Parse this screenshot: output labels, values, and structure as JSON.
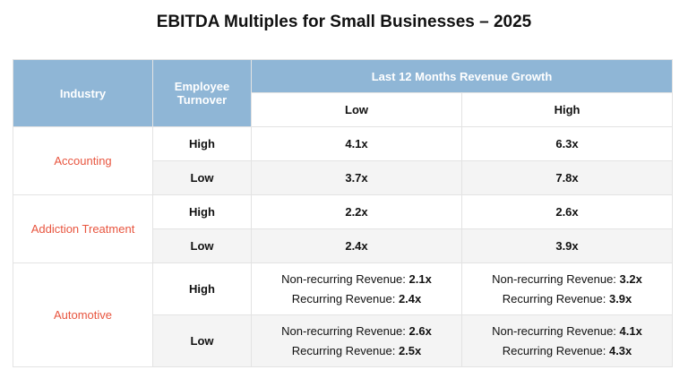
{
  "title": "EBITDA Multiples for Small Businesses – 2025",
  "headers": {
    "industry": "Industry",
    "turnover": "Employee Turnover",
    "growth": "Last 12 Months Revenue Growth",
    "low": "Low",
    "high": "High"
  },
  "rows": {
    "accounting": {
      "label": "Accounting",
      "high_turnover": {
        "label": "High",
        "low": "4.1x",
        "high": "6.3x"
      },
      "low_turnover": {
        "label": "Low",
        "low": "3.7x",
        "high": "7.8x"
      }
    },
    "addiction": {
      "label": "Addiction Treatment",
      "high_turnover": {
        "label": "High",
        "low": "2.2x",
        "high": "2.6x"
      },
      "low_turnover": {
        "label": "Low",
        "low": "2.4x",
        "high": "3.9x"
      }
    },
    "automotive": {
      "label": "Automotive",
      "nonrec_label": "Non-recurring Revenue: ",
      "rec_label": "Recurring Revenue: ",
      "high_turnover": {
        "label": "High",
        "low_nonrec": "2.1x",
        "low_rec": "2.4x",
        "high_nonrec": "3.2x",
        "high_rec": "3.9x"
      },
      "low_turnover": {
        "label": "Low",
        "low_nonrec": "2.6x",
        "low_rec": "2.5x",
        "high_nonrec": "4.1x",
        "high_rec": "4.3x"
      }
    }
  },
  "colors": {
    "header_bg": "#8fb6d6",
    "industry_text": "#e8553f",
    "row_shade": "#f4f4f4"
  }
}
